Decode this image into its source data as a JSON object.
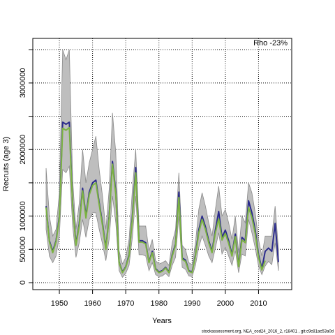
{
  "chart_data": {
    "type": "line",
    "annotation": "Rho -23%",
    "xlabel": "Years",
    "ylabel": "Recruits (age 3)",
    "footer": "stockassessment.org, NEA_cod24_2016_2, r18401 , git:c9c81ac53a0d",
    "x": [
      1946,
      1947,
      1948,
      1949,
      1950,
      1951,
      1952,
      1953,
      1954,
      1955,
      1956,
      1957,
      1958,
      1959,
      1960,
      1961,
      1962,
      1963,
      1964,
      1965,
      1966,
      1967,
      1968,
      1969,
      1970,
      1971,
      1972,
      1973,
      1974,
      1975,
      1976,
      1977,
      1978,
      1979,
      1980,
      1981,
      1982,
      1983,
      1984,
      1985,
      1986,
      1987,
      1988,
      1989,
      1990,
      1991,
      1992,
      1993,
      1994,
      1995,
      1996,
      1997,
      1998,
      1999,
      2000,
      2001,
      2002,
      2003,
      2004,
      2005,
      2006,
      2007,
      2008,
      2009,
      2010,
      2011,
      2012,
      2013,
      2014,
      2015,
      2016
    ],
    "band": {
      "color": "#bebebe",
      "upper": [
        1720000,
        1000000,
        700000,
        800000,
        1350000,
        3500000,
        3350000,
        3500000,
        1550000,
        800000,
        1200000,
        2000000,
        1500000,
        1800000,
        2000000,
        2200000,
        1700000,
        1300000,
        800000,
        1400000,
        2550000,
        1950000,
        480000,
        280000,
        380000,
        650000,
        1400000,
        2000000,
        850000,
        850000,
        850000,
        480000,
        650000,
        330000,
        280000,
        300000,
        330000,
        260000,
        600000,
        800000,
        1650000,
        560000,
        500000,
        300000,
        270000,
        600000,
        1100000,
        1350000,
        1150000,
        900000,
        700000,
        1100000,
        1450000,
        1000000,
        1100000,
        900000,
        650000,
        1000000,
        450000,
        1000000,
        900000,
        1500000,
        1350000,
        1050000,
        650000,
        400000,
        700000,
        700000,
        700000,
        1150000,
        500000
      ],
      "lower": [
        800000,
        400000,
        300000,
        400000,
        700000,
        1700000,
        1650000,
        1750000,
        850000,
        380000,
        600000,
        950000,
        680000,
        950000,
        1050000,
        1050000,
        800000,
        580000,
        330000,
        650000,
        1300000,
        900000,
        180000,
        80000,
        140000,
        260000,
        680000,
        1300000,
        420000,
        420000,
        400000,
        180000,
        300000,
        120000,
        90000,
        100000,
        140000,
        90000,
        260000,
        380000,
        1000000,
        230000,
        200000,
        100000,
        90000,
        260000,
        530000,
        700000,
        560000,
        400000,
        300000,
        520000,
        750000,
        430000,
        530000,
        400000,
        260000,
        480000,
        150000,
        430000,
        400000,
        950000,
        750000,
        520000,
        250000,
        120000,
        250000,
        320000,
        270000,
        600000,
        180000
      ]
    },
    "series": [
      {
        "color": "#2b2b8c",
        "values": [
          1150000,
          630000,
          470000,
          630000,
          1000000,
          2410000,
          2380000,
          2410000,
          1200000,
          580000,
          890000,
          1420000,
          1000000,
          1360000,
          1500000,
          1540000,
          1200000,
          890000,
          520000,
          1000000,
          1820000,
          1360000,
          310000,
          160000,
          240000,
          420000,
          1000000,
          1730000,
          630000,
          630000,
          600000,
          310000,
          470000,
          210000,
          160000,
          180000,
          230000,
          160000,
          420000,
          580000,
          1360000,
          370000,
          340000,
          180000,
          160000,
          420000,
          790000,
          1000000,
          840000,
          630000,
          470000,
          790000,
          1070000,
          680000,
          790000,
          630000,
          420000,
          730000,
          260000,
          680000,
          630000,
          1230000,
          1050000,
          790000,
          420000,
          210000,
          470000,
          520000,
          470000,
          890000,
          310000
        ]
      },
      {
        "color": "#7cb342",
        "values": [
          1130000,
          610000,
          450000,
          610000,
          970000,
          2320000,
          2290000,
          2330000,
          1160000,
          560000,
          860000,
          1380000,
          970000,
          1320000,
          1460000,
          1500000,
          1170000,
          860000,
          500000,
          970000,
          1780000,
          1320000,
          300000,
          150000,
          230000,
          400000,
          960000,
          1650000,
          610000,
          610000,
          580000,
          300000,
          450000,
          200000,
          150000,
          170000,
          220000,
          150000,
          400000,
          560000,
          1280000,
          350000,
          320000,
          170000,
          150000,
          400000,
          750000,
          950000,
          800000,
          600000,
          450000,
          750000,
          960000,
          640000,
          740000,
          590000,
          400000,
          690000,
          240000,
          640000,
          600000,
          1130000,
          980000,
          740000,
          380000,
          190000,
          330000,
          null,
          null,
          null,
          null
        ]
      }
    ],
    "xlim": [
      1942,
      2020
    ],
    "xticks": [
      1950,
      1960,
      1970,
      1980,
      1990,
      2000,
      2010
    ],
    "ylim": [
      -105000,
      3670000
    ],
    "yticks": [
      0,
      500000,
      1000000,
      2000000,
      3000000
    ],
    "ygrid": [
      1500000,
      2500000,
      3500000
    ],
    "grid": true
  }
}
